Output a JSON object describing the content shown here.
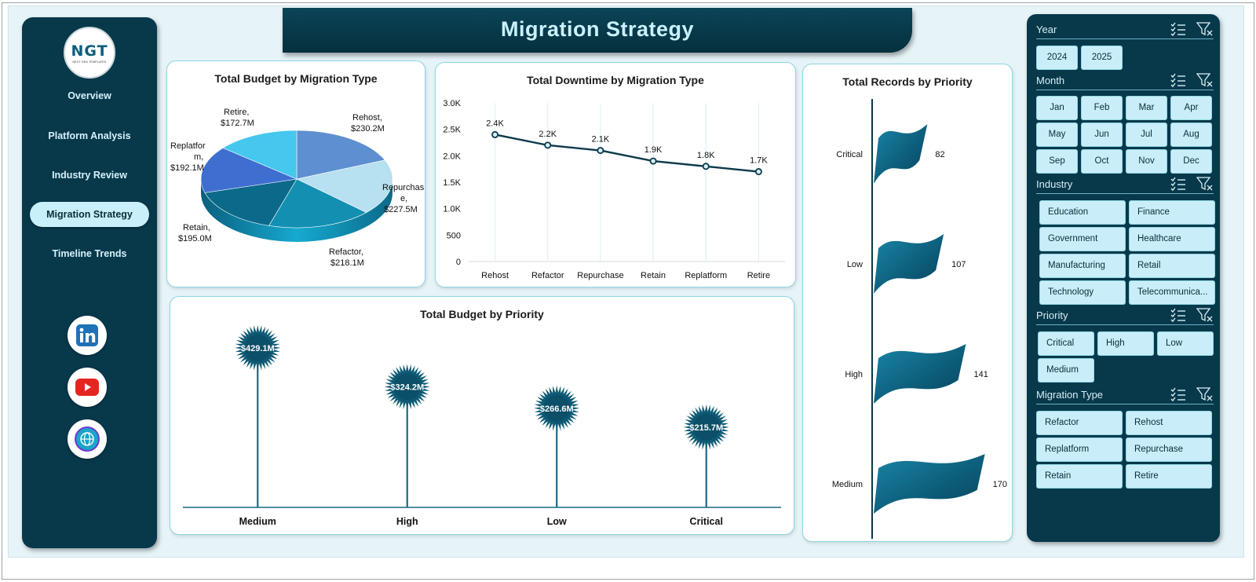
{
  "title": "Migration Strategy",
  "logo": {
    "mark": "NGT",
    "sub": "NEXT GEN TEMPLATES"
  },
  "nav": {
    "items": [
      {
        "label": "Overview"
      },
      {
        "label": "Platform Analysis"
      },
      {
        "label": "Industry Review"
      },
      {
        "label": "Migration Strategy",
        "active": true
      },
      {
        "label": "Timeline Trends"
      }
    ],
    "social": [
      "linkedin-icon",
      "youtube-icon",
      "globe-icon"
    ]
  },
  "colors": {
    "navy": "#07394b",
    "teal": "#0b5f7b",
    "light": "#c9eef9",
    "accent": "#1a6a86"
  },
  "charts": {
    "budget_by_type": {
      "title": "Total Budget by Migration Type",
      "labels": [
        {
          "line1": "Rehost,",
          "line2": "$230.2M"
        },
        {
          "line1": "Repurchas",
          "line2": "e,",
          "line3": "$227.5M"
        },
        {
          "line1": "Refactor,",
          "line2": "$218.1M"
        },
        {
          "line1": "Retain,",
          "line2": "$195.0M"
        },
        {
          "line1": "Replatfor",
          "line2": "m,",
          "line3": "$192.1M"
        },
        {
          "line1": "Retire,",
          "line2": "$172.7M"
        }
      ]
    },
    "downtime_by_type": {
      "title": "Total Downtime by Migration Type",
      "yticks": [
        "0",
        "500",
        "1.0K",
        "1.5K",
        "2.0K",
        "2.5K",
        "3.0K"
      ],
      "data_labels": [
        "2.4K",
        "2.2K",
        "2.1K",
        "1.9K",
        "1.8K",
        "1.7K"
      ]
    },
    "budget_by_priority": {
      "title": "Total Budget by Priority",
      "data_labels": [
        "$429.1M",
        "$324.2M",
        "$266.6M",
        "$215.7M"
      ]
    },
    "records_by_priority": {
      "title": "Total Records by Priority"
    }
  },
  "chart_data": [
    {
      "type": "pie",
      "title": "Total Budget by Migration Type",
      "categories": [
        "Rehost",
        "Repurchase",
        "Refactor",
        "Retain",
        "Replatform",
        "Retire"
      ],
      "values": [
        230.2,
        227.5,
        218.1,
        195.0,
        192.1,
        172.7
      ],
      "unit": "$M",
      "colors": [
        "#5e8fd0",
        "#b7e0f0",
        "#138fb2",
        "#0b6a8a",
        "#3e6fd0",
        "#45c7ee"
      ]
    },
    {
      "type": "line",
      "title": "Total Downtime by Migration Type",
      "categories": [
        "Rehost",
        "Refactor",
        "Repurchase",
        "Retain",
        "Replatform",
        "Retire"
      ],
      "values": [
        2400,
        2200,
        2100,
        1900,
        1800,
        1700
      ],
      "ylim": [
        0,
        3000
      ],
      "grid": "vertical"
    },
    {
      "type": "bar",
      "title": "Total Budget by Priority",
      "categories": [
        "Medium",
        "High",
        "Low",
        "Critical"
      ],
      "values": [
        429.1,
        324.2,
        266.6,
        215.7
      ],
      "unit": "$M",
      "ylim": [
        0,
        450
      ],
      "style": "lollipop-starburst"
    },
    {
      "type": "bar",
      "title": "Total Records by Priority",
      "categories": [
        "Critical",
        "Low",
        "High",
        "Medium"
      ],
      "values": [
        82,
        107,
        141,
        170
      ],
      "orientation": "horizontal",
      "style": "flag"
    }
  ],
  "slicers": [
    {
      "title": "Year",
      "items": [
        "2024",
        "2025"
      ]
    },
    {
      "title": "Month",
      "items": [
        "Jan",
        "Feb",
        "Mar",
        "Apr",
        "May",
        "Jun",
        "Jul",
        "Aug",
        "Sep",
        "Oct",
        "Nov",
        "Dec"
      ]
    },
    {
      "title": "Industry",
      "items": [
        "Education",
        "Finance",
        "Government",
        "Healthcare",
        "Manufacturing",
        "Retail",
        "Technology",
        "Telecommunica..."
      ]
    },
    {
      "title": "Priority",
      "items": [
        "Critical",
        "High",
        "Low",
        "Medium"
      ]
    },
    {
      "title": "Migration Type",
      "items": [
        "Refactor",
        "Rehost",
        "Replatform",
        "Repurchase",
        "Retain",
        "Retire"
      ]
    }
  ]
}
